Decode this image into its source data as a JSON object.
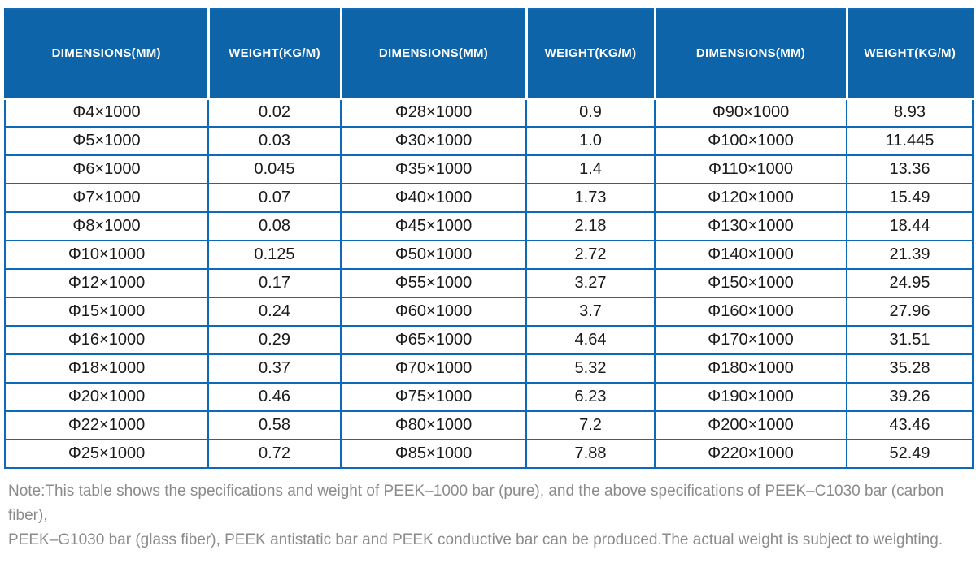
{
  "table": {
    "column_headers": [
      "DIMENSIONS(MM)",
      "WEIGHT(KG/M)",
      "DIMENSIONS(MM)",
      "WEIGHT(KG/M)",
      "DIMENSIONS(MM)",
      "WEIGHT(KG/M)"
    ],
    "rows": [
      [
        "Φ4×1000",
        "0.02",
        "Φ28×1000",
        "0.9",
        "Φ90×1000",
        "8.93"
      ],
      [
        "Φ5×1000",
        "0.03",
        "Φ30×1000",
        "1.0",
        "Φ100×1000",
        "11.445"
      ],
      [
        "Φ6×1000",
        "0.045",
        "Φ35×1000",
        "1.4",
        "Φ110×1000",
        "13.36"
      ],
      [
        "Φ7×1000",
        "0.07",
        "Φ40×1000",
        "1.73",
        "Φ120×1000",
        "15.49"
      ],
      [
        "Φ8×1000",
        "0.08",
        "Φ45×1000",
        "2.18",
        "Φ130×1000",
        "18.44"
      ],
      [
        "Φ10×1000",
        "0.125",
        "Φ50×1000",
        "2.72",
        "Φ140×1000",
        "21.39"
      ],
      [
        "Φ12×1000",
        "0.17",
        "Φ55×1000",
        "3.27",
        "Φ150×1000",
        "24.95"
      ],
      [
        "Φ15×1000",
        "0.24",
        "Φ60×1000",
        "3.7",
        "Φ160×1000",
        "27.96"
      ],
      [
        "Φ16×1000",
        "0.29",
        "Φ65×1000",
        "4.64",
        "Φ170×1000",
        "31.51"
      ],
      [
        "Φ18×1000",
        "0.37",
        "Φ70×1000",
        "5.32",
        "Φ180×1000",
        "35.28"
      ],
      [
        "Φ20×1000",
        "0.46",
        "Φ75×1000",
        "6.23",
        "Φ190×1000",
        "39.26"
      ],
      [
        "Φ22×1000",
        "0.58",
        "Φ80×1000",
        "7.2",
        "Φ200×1000",
        "43.46"
      ],
      [
        "Φ25×1000",
        "0.72",
        "Φ85×1000",
        "7.88",
        "Φ220×1000",
        "52.49"
      ]
    ]
  },
  "note": {
    "line1": "Note:This table shows the specifications and weight of PEEK–1000 bar (pure), and the above specifications of PEEK–C1030 bar (carbon fiber),",
    "line2": "PEEK–G1030 bar (glass fiber), PEEK antistatic bar and PEEK conductive bar can be produced.The actual weight is subject to weighting."
  },
  "colors": {
    "header_background": "#0d64a8",
    "table_border": "#0e6ab8",
    "cell_text": "#1a1a1a",
    "note_text": "#8b8b8b"
  }
}
